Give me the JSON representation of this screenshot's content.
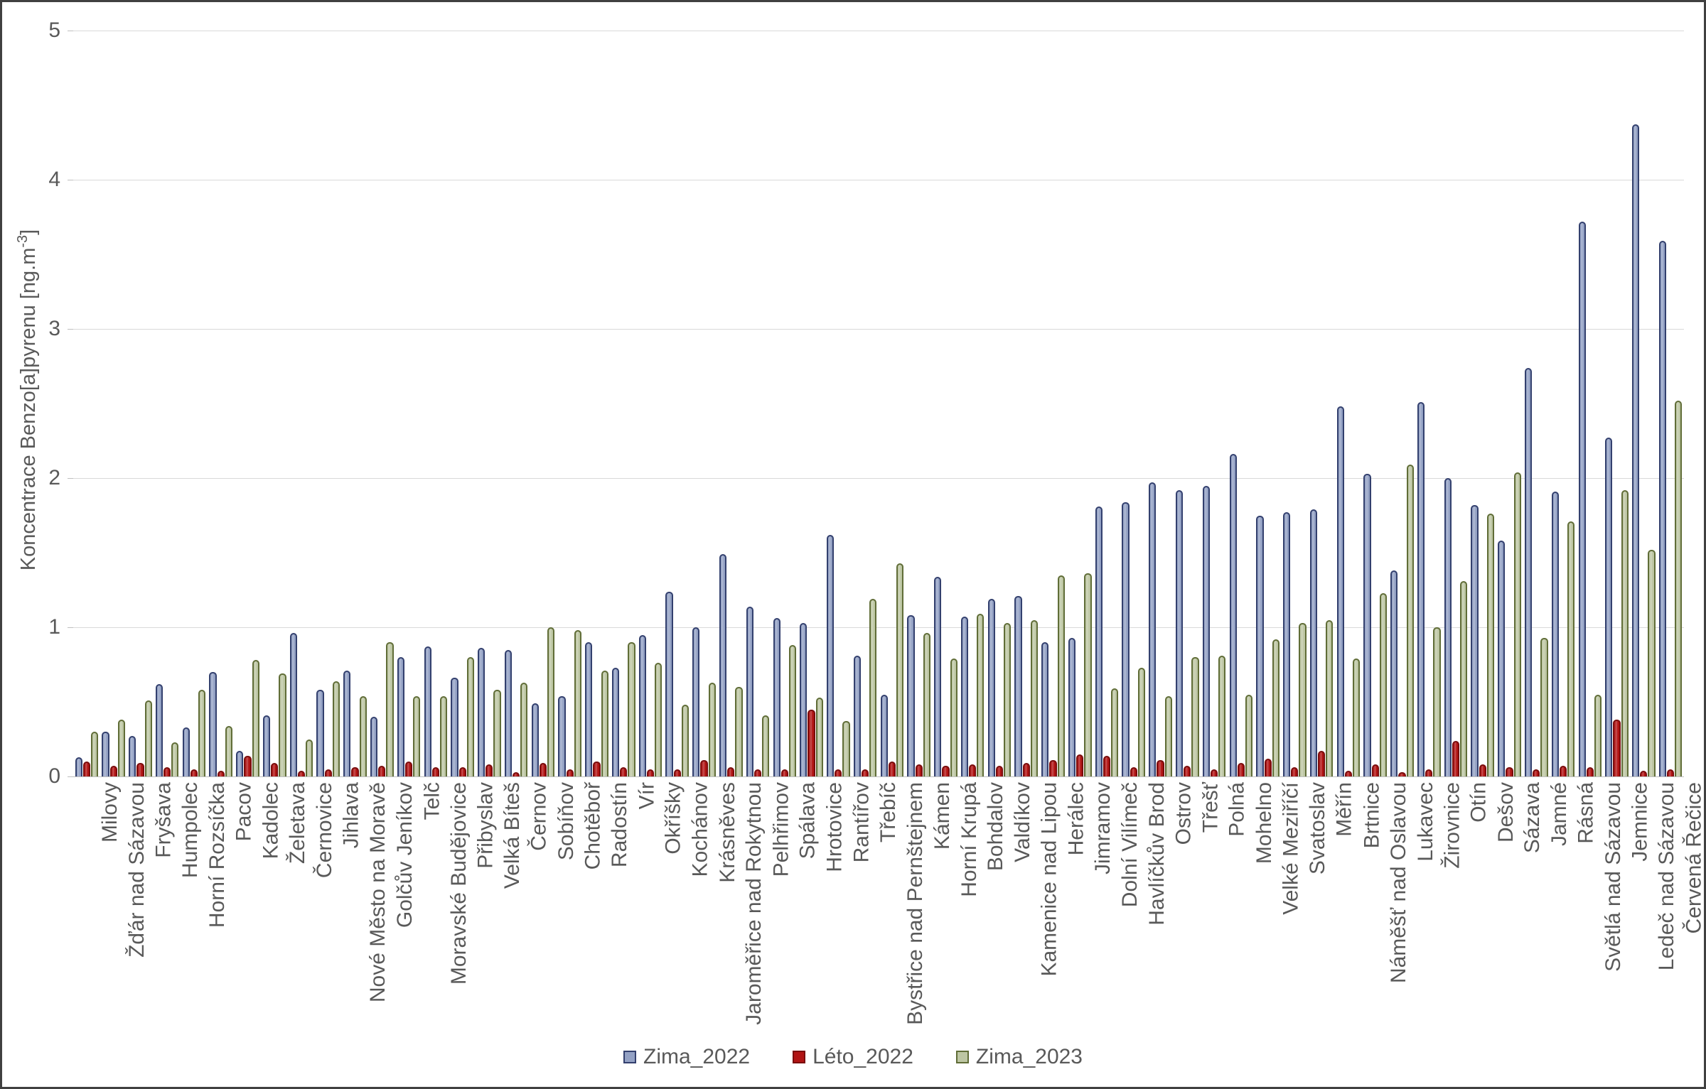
{
  "chart_data": {
    "type": "bar",
    "title": "",
    "ylabel_prefix": "Koncentrace Benzo[a]pyrenu [ng.m",
    "ylabel_sup": "-3",
    "ylabel_suffix": "]",
    "ylim": [
      0,
      5
    ],
    "yticks": [
      0,
      1,
      2,
      3,
      4,
      5
    ],
    "grid": true,
    "legend_position": "bottom",
    "categories": [
      "Milovy",
      "Žďár nad Sázavou",
      "Fryšava",
      "Humpolec",
      "Horní Rozsíčka",
      "Pacov",
      "Kadolec",
      "Želetava",
      "Černovice",
      "Jihlava",
      "Nové Město na Moravě",
      "Golčův Jeníkov",
      "Telč",
      "Moravské Budějovice",
      "Přibyslav",
      "Velká Bíteš",
      "Černov",
      "Sobíňov",
      "Chotěboř",
      "Radostín",
      "Vír",
      "Okříšky",
      "Kochánov",
      "Krásněves",
      "Jaroměřice nad Rokytnou",
      "Pelhřimov",
      "Spálava",
      "Hrotovice",
      "Rantířov",
      "Třebíč",
      "Bystřice nad Pernštejnem",
      "Kámen",
      "Horní Krupá",
      "Bohdalov",
      "Valdíkov",
      "Kamenice nad Lipou",
      "Herálec",
      "Jimramov",
      "Dolní Vilímeč",
      "Havlíčkův Brod",
      "Ostrov",
      "Třešť",
      "Polná",
      "Mohelno",
      "Velké Meziříčí",
      "Svatoslav",
      "Měřín",
      "Brtnice",
      "Náměšť nad Oslavou",
      "Lukavec",
      "Žirovnice",
      "Otín",
      "Dešov",
      "Sázava",
      "Jamné",
      "Rásná",
      "Světlá nad Sázavou",
      "Jemnice",
      "Ledeč nad Sázavou",
      "Červená Řečice"
    ],
    "series": [
      {
        "name": "Zima_2022",
        "fill": "#93a1c4",
        "border": "#33406e",
        "values": [
          0.13,
          0.3,
          0.27,
          0.62,
          0.33,
          0.7,
          0.17,
          0.41,
          0.96,
          0.58,
          0.71,
          0.4,
          0.8,
          0.87,
          0.66,
          0.86,
          0.85,
          0.49,
          0.54,
          0.9,
          0.73,
          0.95,
          1.24,
          1.0,
          1.49,
          1.14,
          1.06,
          1.03,
          1.62,
          0.81,
          0.55,
          1.08,
          1.34,
          1.07,
          1.19,
          1.21,
          0.9,
          0.93,
          1.81,
          1.84,
          1.97,
          1.92,
          1.95,
          2.16,
          1.75,
          1.77,
          1.79,
          2.48,
          2.03,
          1.38,
          2.51,
          2.0,
          1.82,
          1.58,
          2.74,
          1.91,
          3.72,
          2.27,
          4.37,
          3.59
        ]
      },
      {
        "name": "Léto_2022",
        "fill": "#b11414",
        "border": "#7a0d0d",
        "values": [
          0.1,
          0.07,
          0.09,
          0.06,
          0.05,
          0.04,
          0.14,
          0.09,
          0.04,
          0.05,
          0.06,
          0.07,
          0.1,
          0.06,
          0.06,
          0.08,
          0.03,
          0.09,
          0.05,
          0.1,
          0.06,
          0.05,
          0.05,
          0.11,
          0.06,
          0.05,
          0.05,
          0.45,
          0.05,
          0.05,
          0.1,
          0.08,
          0.07,
          0.08,
          0.07,
          0.09,
          0.11,
          0.15,
          0.14,
          0.06,
          0.11,
          0.07,
          0.05,
          0.09,
          0.12,
          0.06,
          0.17,
          0.04,
          0.08,
          0.03,
          0.05,
          0.24,
          0.08,
          0.06,
          0.05,
          0.07,
          0.06,
          0.38,
          0.04,
          0.05
        ]
      },
      {
        "name": "Zima_2023",
        "fill": "#bdc6a3",
        "border": "#606d37",
        "values": [
          0.3,
          0.38,
          0.51,
          0.23,
          0.58,
          0.34,
          0.78,
          0.69,
          0.25,
          0.64,
          0.54,
          0.9,
          0.54,
          0.54,
          0.8,
          0.58,
          0.63,
          1.0,
          0.98,
          0.71,
          0.9,
          0.76,
          0.48,
          0.63,
          0.6,
          0.41,
          0.88,
          0.53,
          0.37,
          1.19,
          1.43,
          0.96,
          0.79,
          1.09,
          1.03,
          1.05,
          1.35,
          1.36,
          0.59,
          0.73,
          0.54,
          0.8,
          0.81,
          0.55,
          0.92,
          1.03,
          1.05,
          0.79,
          1.23,
          2.09,
          1.0,
          1.31,
          1.76,
          2.04,
          0.93,
          1.71,
          0.55,
          1.92,
          1.52,
          2.52
        ]
      }
    ]
  }
}
